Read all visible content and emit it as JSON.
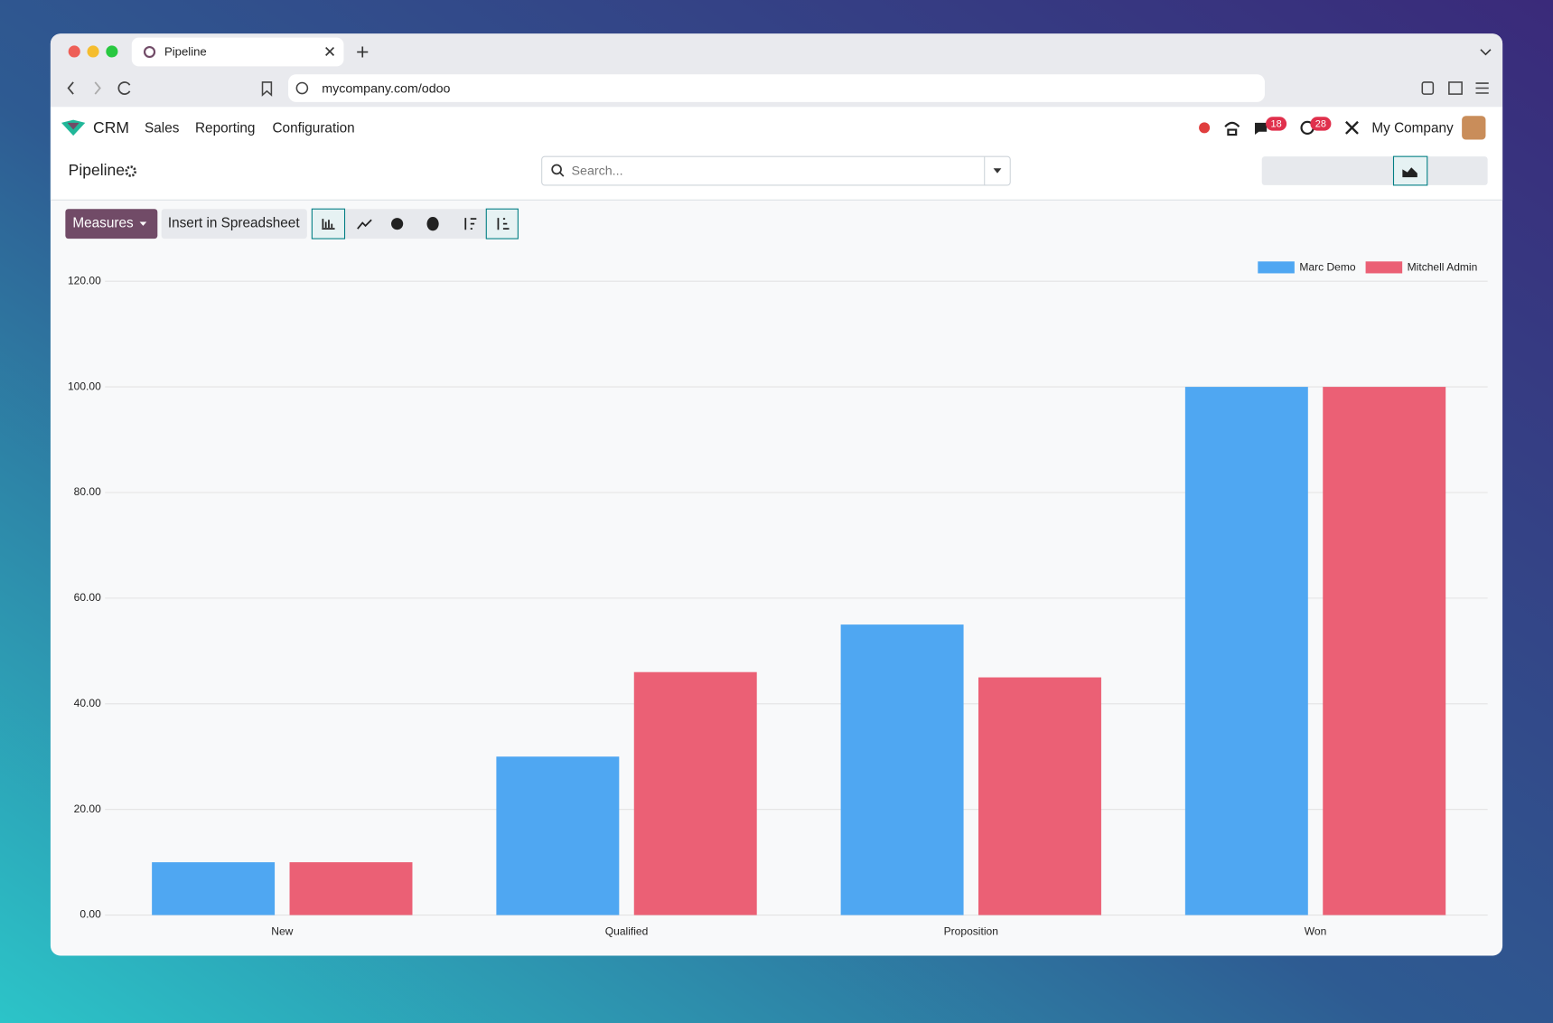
{
  "browser": {
    "tab_title": "Pipeline",
    "url": "mycompany.com/odoo"
  },
  "navbar": {
    "app": "CRM",
    "menus": [
      "Sales",
      "Reporting",
      "Configuration"
    ],
    "messages_badge": "18",
    "activities_badge": "28",
    "company": "My Company"
  },
  "control_panel": {
    "breadcrumb": "Pipeline",
    "search_placeholder": "Search...",
    "measures": "Measures",
    "insert": "Insert in Spreadsheet"
  },
  "chart_data": {
    "type": "bar",
    "categories": [
      "New",
      "Qualified",
      "Proposition",
      "Won"
    ],
    "series": [
      {
        "name": "Marc Demo",
        "color": "#4fa7f2",
        "values": [
          10,
          30,
          55,
          100
        ]
      },
      {
        "name": "Mitchell Admin",
        "color": "#eb6075",
        "values": [
          10,
          46,
          45,
          100
        ]
      }
    ],
    "ylim": [
      0,
      120
    ],
    "yticks": [
      {
        "value": 0,
        "label": "0.00"
      },
      {
        "value": 20,
        "label": "20.00"
      },
      {
        "value": 40,
        "label": "40.00"
      },
      {
        "value": 60,
        "label": "60.00"
      },
      {
        "value": 80,
        "label": "80.00"
      },
      {
        "value": 100,
        "label": "100.00"
      },
      {
        "value": 120,
        "label": "120.00"
      }
    ],
    "grid": true,
    "legend": "top-right"
  }
}
